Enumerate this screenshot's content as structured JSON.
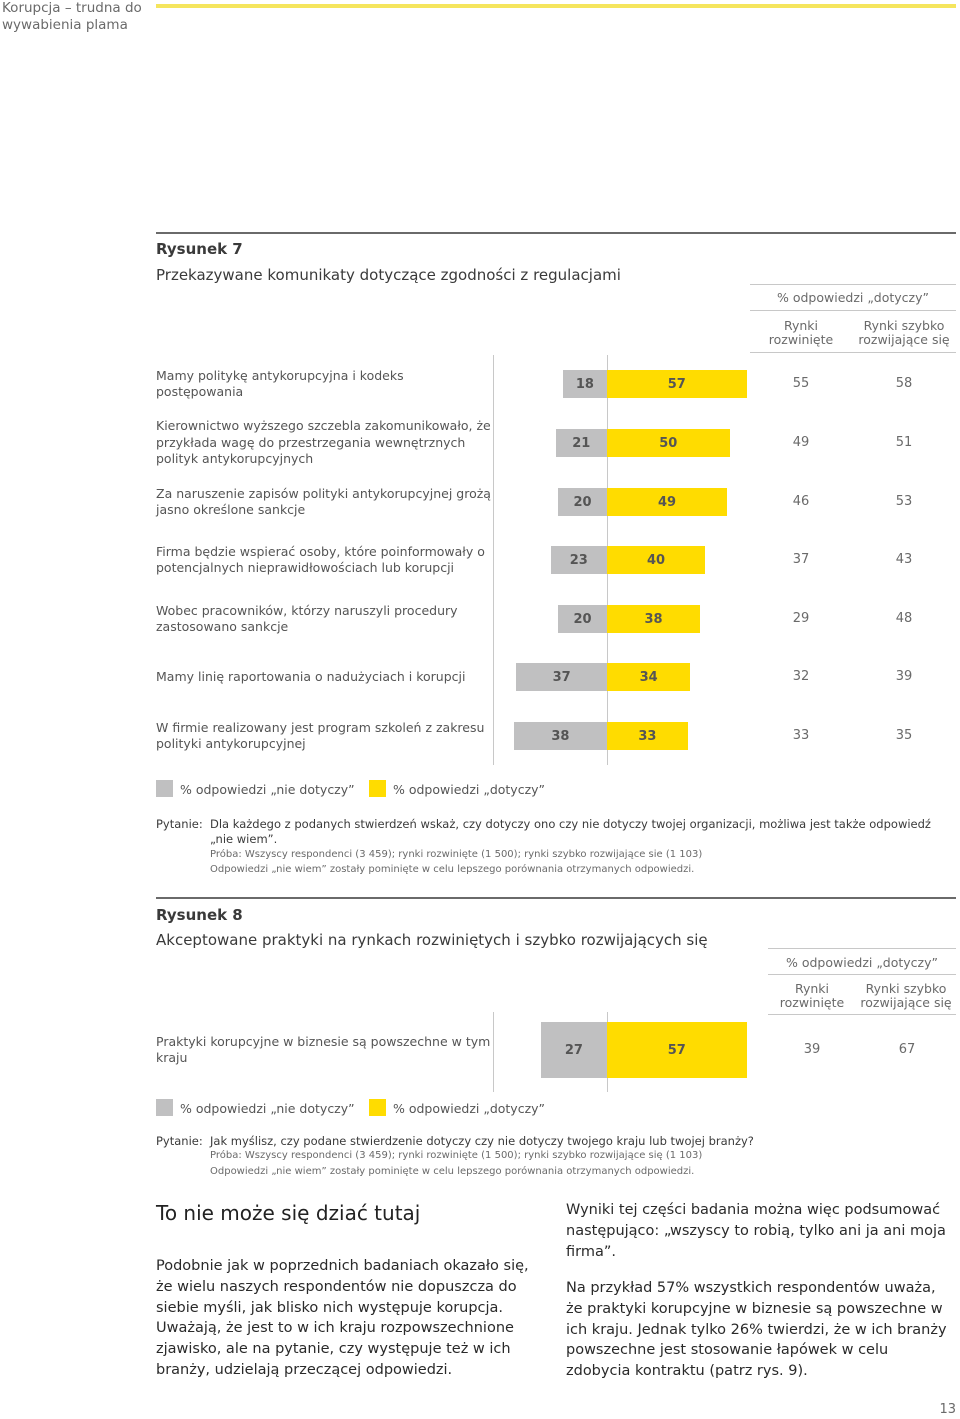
{
  "header": {
    "running_title": "Korupcja – trudna do wywabienia plama"
  },
  "fig7": {
    "label": "Rysunek 7",
    "title": "Przekazywane komunikaty dotyczące zgodności z regulacjami",
    "col_group": "% odpowiedzi „dotyczy”",
    "col1": "Rynki rozwinięte",
    "col2": "Rynki szybko rozwijające się",
    "rows": [
      {
        "label": "Mamy politykę antykorupcyjna  i kodeks postępowania",
        "grey": 18,
        "yellow": 57,
        "dev": "55",
        "emg": "58"
      },
      {
        "label": "Kierownictwo wyższego szczebla zakomunikowało, że przykłada wagę do przestrzegania wewnętrznych polityk antykorupcyjnych",
        "grey": 21,
        "yellow": 50,
        "dev": "49",
        "emg": "51"
      },
      {
        "label": "Za naruszenie zapisów polityki antykorupcyjnej grożą jasno określone sankcje",
        "grey": 20,
        "yellow": 49,
        "dev": "46",
        "emg": "53"
      },
      {
        "label": "Firma będzie wspierać osoby, które poinformowały o potencjalnych nieprawidłowościach lub korupcji",
        "grey": 23,
        "yellow": 40,
        "dev": "37",
        "emg": "43"
      },
      {
        "label": "Wobec pracowników, którzy naruszyli procedury zastosowano sankcje",
        "grey": 20,
        "yellow": 38,
        "dev": "29",
        "emg": "48"
      },
      {
        "label": "Mamy linię raportowania o nadużyciach i korupcji",
        "grey": 37,
        "yellow": 34,
        "dev": "32",
        "emg": "39"
      },
      {
        "label": "W firmie realizowany jest program szkoleń z zakresu polityki antykorupcyjnej",
        "grey": 38,
        "yellow": 33,
        "dev": "33",
        "emg": "35"
      }
    ],
    "legend_grey": "% odpowiedzi „nie dotyczy”",
    "legend_yellow": "% odpowiedzi „dotyczy”",
    "question_label": "Pytanie:",
    "question": "Dla każdego z podanych stwierdzeń wskaż, czy dotyczy ono czy nie dotyczy twojej organizacji, możliwa jest także odpowiedź „nie wiem”.",
    "sample": "Próba: Wszyscy respondenci (3 459); rynki rozwinięte (1 500); rynki szybko rozwijające sie (1 103)",
    "omitted": "Odpowiedzi „nie wiem” zostały pominięte w celu lepszego porównania otrzymanych odpowiedzi."
  },
  "fig8": {
    "label": "Rysunek 8",
    "title": "Akceptowane praktyki na rynkach rozwiniętych i szybko rozwijających się",
    "col_group": "% odpowiedzi „dotyczy”",
    "col1": "Rynki rozwinięte",
    "col2": "Rynki szybko rozwijające się",
    "rows": [
      {
        "label": "Praktyki korupcyjne w biznesie są powszechne w tym kraju",
        "grey": 27,
        "yellow": 57,
        "dev": "39",
        "emg": "67"
      }
    ],
    "legend_grey": "% odpowiedzi „nie dotyczy”",
    "legend_yellow": "% odpowiedzi „dotyczy”",
    "question_label": "Pytanie:",
    "question": "Jak myślisz, czy podane stwierdzenie dotyczy czy nie dotyczy twojego kraju lub twojej branży?",
    "sample": "Próba: Wszyscy respondenci (3 459); rynki rozwinięte (1 500); rynki szybko rozwijające się (1 103)",
    "omitted": "Odpowiedzi „nie wiem” zostały pominięte w celu lepszego porównania otrzymanych odpowiedzi."
  },
  "article": {
    "heading": "To nie może się dziać tutaj",
    "col1": "Podobnie jak w poprzednich badaniach okazało się, że wielu naszych respondentów nie dopuszcza do siebie myśli, jak blisko nich występuje korupcja. Uważają, że jest to w ich kraju rozpowszechnione zjawisko, ale na pytanie, czy występuje też w ich branży, udzielają przeczącej odpowiedzi.",
    "col2_p1": "Wyniki tej części badania można więc podsumować następująco: „wszyscy to robią, tylko ani ja ani moja firma”.",
    "col2_p2": "Na przykład 57% wszystkich respondentów uważa, że praktyki korupcyjne w biznesie są powszechne w ich kraju. Jednak tylko 26% twierdzi, że w ich branży powszechne jest stosowanie łapówek w celu zdobycia kontraktu (patrz rys. 9)."
  },
  "page_number": "13",
  "colors": {
    "grey_bar": "#c0c0c1",
    "yellow_bar": "#ffdc00",
    "top_rule": "#f5e55d"
  }
}
